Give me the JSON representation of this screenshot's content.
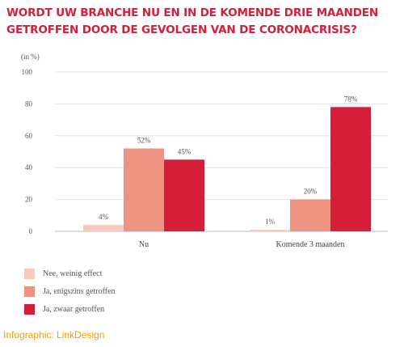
{
  "title": {
    "line1": "WORDT UW BRANCHE NU EN IN DE KOMENDE DRIE MAANDEN",
    "line2": "GETROFFEN DOOR DE GEVOLGEN VAN DE CORONACRISIS?"
  },
  "credit": "Infographic: LinkDesign",
  "colors": {
    "title": "#d51e3a",
    "series": [
      "#f7cabd",
      "#ee9381",
      "#d51e3a"
    ],
    "credit": "#f0a000"
  },
  "chart_data": {
    "type": "bar",
    "unit_label": "(in %)",
    "categories": [
      "Nu",
      "Komende 3 maanden"
    ],
    "series": [
      {
        "name": "Nee, weinig effect",
        "values": [
          4,
          1
        ],
        "labels": [
          "4%",
          "1%"
        ]
      },
      {
        "name": "Ja, enigszins getroffen",
        "values": [
          52,
          20
        ],
        "labels": [
          "52%",
          "20%"
        ]
      },
      {
        "name": "Ja, zwaar getroffen",
        "values": [
          45,
          78
        ],
        "labels": [
          "45%",
          "78%"
        ]
      }
    ],
    "ylim": [
      0,
      100
    ],
    "yticks": [
      0,
      20,
      40,
      60,
      80,
      100
    ],
    "ytick_labels": [
      "0",
      "20",
      "40",
      "60",
      "80",
      "100"
    ],
    "grid": true,
    "legend_position": "bottom-left"
  }
}
